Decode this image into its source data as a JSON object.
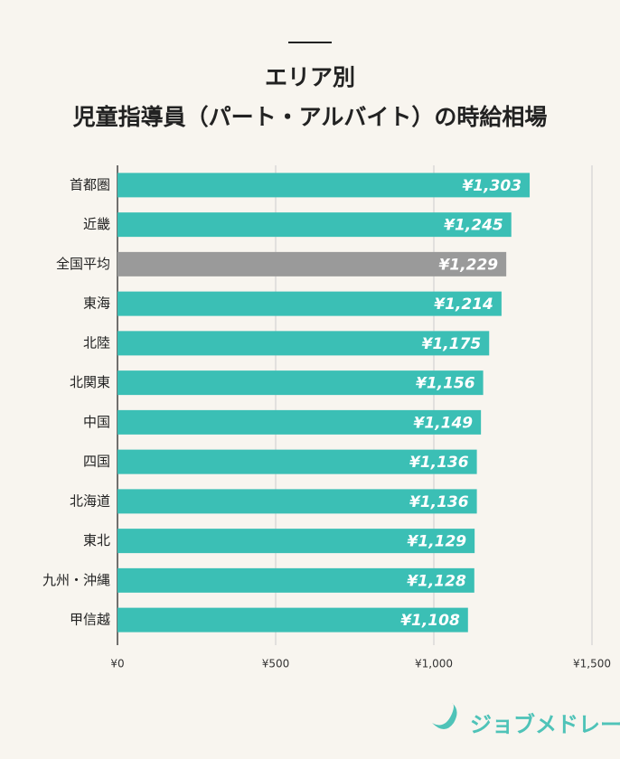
{
  "chart_data": {
    "type": "hbar",
    "title": [
      "エリア別",
      "児童指導員（パート・アルバイト）の時給相場"
    ],
    "categories": [
      "首都圏",
      "近畿",
      "全国平均",
      "東海",
      "北陸",
      "北関東",
      "中国",
      "四国",
      "北海道",
      "東北",
      "九州・沖縄",
      "甲信越"
    ],
    "values": [
      1303,
      1245,
      1229,
      1214,
      1175,
      1156,
      1149,
      1136,
      1136,
      1129,
      1128,
      1108
    ],
    "value_labels": [
      "¥1,303",
      "¥1,245",
      "¥1,229",
      "¥1,214",
      "¥1,175",
      "¥1,156",
      "¥1,149",
      "¥1,136",
      "¥1,136",
      "¥1,129",
      "¥1,128",
      "¥1,108"
    ],
    "colors": [
      "#3bbfb5",
      "#3bbfb5",
      "#9a9a9a",
      "#3bbfb5",
      "#3bbfb5",
      "#3bbfb5",
      "#3bbfb5",
      "#3bbfb5",
      "#3bbfb5",
      "#3bbfb5",
      "#3bbfb5",
      "#3bbfb5"
    ],
    "xlim": [
      0,
      1500
    ],
    "xticks": [
      {
        "value": 0,
        "label": "¥0"
      },
      {
        "value": 500,
        "label": "¥500"
      },
      {
        "value": 1000,
        "label": "¥1,000"
      },
      {
        "value": 1500,
        "label": "¥1,500"
      }
    ],
    "grid": true,
    "brand": "ジョブメドレー"
  }
}
